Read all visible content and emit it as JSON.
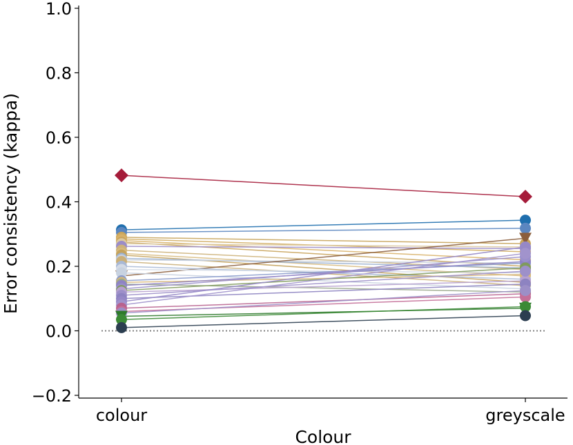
{
  "chart_data": {
    "type": "line",
    "categories": [
      "colour",
      "greyscale"
    ],
    "xlabel": "Colour",
    "ylabel": "Error consistency (kappa)",
    "ylim": [
      -0.2,
      1.0
    ],
    "yticks": [
      {
        "value": -0.2,
        "label": "−0.2"
      },
      {
        "value": 0.0,
        "label": "0.0"
      },
      {
        "value": 0.2,
        "label": "0.2"
      },
      {
        "value": 0.4,
        "label": "0.4"
      },
      {
        "value": 0.6,
        "label": "0.6"
      },
      {
        "value": 0.8,
        "label": "0.8"
      },
      {
        "value": 1.0,
        "label": "1.0"
      }
    ],
    "reference_line": {
      "value": 0.0,
      "style": "dotted",
      "color": "#808080"
    },
    "grid": false,
    "series": [
      {
        "values": [
          0.482,
          0.416
        ],
        "color": "#a51c3a",
        "marker": "diamond"
      },
      {
        "values": [
          0.313,
          0.343
        ],
        "color": "#1f6fae",
        "marker": "circle"
      },
      {
        "values": [
          0.305,
          0.318
        ],
        "color": "#5b86c0",
        "marker": "circle"
      },
      {
        "values": [
          0.29,
          0.27
        ],
        "color": "#c7a35a",
        "marker": "circle"
      },
      {
        "values": [
          0.285,
          0.245
        ],
        "color": "#d2ad62",
        "marker": "circle"
      },
      {
        "values": [
          0.28,
          0.22
        ],
        "color": "#d9b26a",
        "marker": "circle"
      },
      {
        "values": [
          0.275,
          0.2
        ],
        "color": "#c9a45c",
        "marker": "circle"
      },
      {
        "values": [
          0.27,
          0.26
        ],
        "color": "#dcc9a0",
        "marker": "circle"
      },
      {
        "values": [
          0.262,
          0.255
        ],
        "color": "#9b8cc8",
        "marker": "circle"
      },
      {
        "values": [
          0.25,
          0.19
        ],
        "color": "#cdb27a",
        "marker": "circle"
      },
      {
        "values": [
          0.24,
          0.17
        ],
        "color": "#d8bb80",
        "marker": "circle"
      },
      {
        "values": [
          0.235,
          0.15
        ],
        "color": "#c5a35d",
        "marker": "circle"
      },
      {
        "values": [
          0.225,
          0.195
        ],
        "color": "#9ab0cf",
        "marker": "circle"
      },
      {
        "values": [
          0.22,
          0.21
        ],
        "color": "#c9d0dc",
        "marker": "circle"
      },
      {
        "values": [
          0.215,
          0.14
        ],
        "color": "#cbb07a",
        "marker": "circle"
      },
      {
        "values": [
          0.17,
          0.287
        ],
        "color": "#8b5e3c",
        "marker": "triangle-down"
      },
      {
        "values": [
          0.2,
          0.16
        ],
        "color": "#a9b9d6",
        "marker": "circle"
      },
      {
        "values": [
          0.19,
          0.18
        ],
        "color": "#d3dae6",
        "marker": "circle"
      },
      {
        "values": [
          0.18,
          0.13
        ],
        "color": "#c8d2e0",
        "marker": "circle"
      },
      {
        "values": [
          0.155,
          0.21
        ],
        "color": "#8a9bcc",
        "marker": "circle"
      },
      {
        "values": [
          0.15,
          0.175
        ],
        "color": "#d7b77a",
        "marker": "circle"
      },
      {
        "values": [
          0.145,
          0.12
        ],
        "color": "#9aa88c",
        "marker": "circle"
      },
      {
        "values": [
          0.14,
          0.215
        ],
        "color": "#8e83c4",
        "marker": "circle"
      },
      {
        "values": [
          0.13,
          0.23
        ],
        "color": "#9a8fcb",
        "marker": "circle"
      },
      {
        "values": [
          0.125,
          0.195
        ],
        "color": "#7f9a5c",
        "marker": "circle"
      },
      {
        "values": [
          0.12,
          0.155
        ],
        "color": "#b7a1cf",
        "marker": "circle"
      },
      {
        "values": [
          0.11,
          0.185
        ],
        "color": "#9d90c9",
        "marker": "circle"
      },
      {
        "values": [
          0.1,
          0.145
        ],
        "color": "#8d83c1",
        "marker": "circle"
      },
      {
        "values": [
          0.09,
          0.26
        ],
        "color": "#9688c6",
        "marker": "circle"
      },
      {
        "values": [
          0.08,
          0.24
        ],
        "color": "#a193cc",
        "marker": "circle"
      },
      {
        "values": [
          0.07,
          0.115
        ],
        "color": "#b8628e",
        "marker": "circle"
      },
      {
        "values": [
          0.06,
          0.105
        ],
        "color": "#c46f98",
        "marker": "circle"
      },
      {
        "values": [
          0.055,
          0.125
        ],
        "color": "#9c8fc7",
        "marker": "circle"
      },
      {
        "values": [
          0.045,
          0.07
        ],
        "color": "#2f7a2c",
        "marker": "triangle-down"
      },
      {
        "values": [
          0.035,
          0.075
        ],
        "color": "#3b8a35",
        "marker": "circle"
      },
      {
        "values": [
          0.01,
          0.047
        ],
        "color": "#2c3e50",
        "marker": "circle"
      }
    ]
  }
}
